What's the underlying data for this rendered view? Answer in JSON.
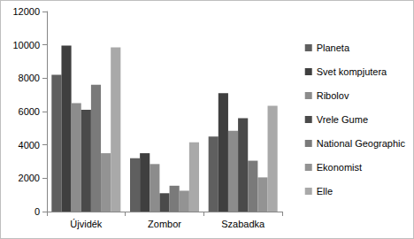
{
  "chart_data": {
    "type": "bar",
    "categories": [
      "Újvidék",
      "Zombor",
      "Szabadka"
    ],
    "series": [
      {
        "name": "Planeta",
        "color": "#5f5f5f",
        "values": [
          8200,
          3200,
          4500
        ]
      },
      {
        "name": "Svet kompjutera",
        "color": "#3f3f3f",
        "values": [
          9950,
          3500,
          7100
        ]
      },
      {
        "name": "Ribolov",
        "color": "#8c8c8c",
        "values": [
          6500,
          2850,
          4850
        ]
      },
      {
        "name": "Vrele Gume",
        "color": "#4a4a4a",
        "values": [
          6100,
          1100,
          5600
        ]
      },
      {
        "name": "National Geographic",
        "color": "#7a7a7a",
        "values": [
          7600,
          1550,
          3050
        ]
      },
      {
        "name": "Ekonomist",
        "color": "#939393",
        "values": [
          3500,
          1250,
          2050
        ]
      },
      {
        "name": "Elle",
        "color": "#a9a9a9",
        "values": [
          9850,
          4150,
          6350
        ]
      }
    ],
    "ylim": [
      0,
      12000
    ],
    "yticks": [
      0,
      2000,
      4000,
      6000,
      8000,
      10000,
      12000
    ],
    "grid": false,
    "legend": "right"
  }
}
